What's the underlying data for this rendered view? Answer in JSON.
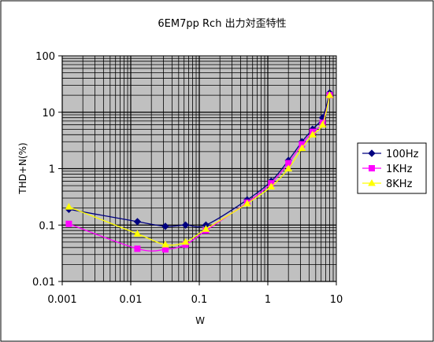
{
  "chart_data": {
    "type": "line",
    "title": "6EM7pp Rch 出力対歪特性",
    "xlabel": "W",
    "ylabel": "THD+N(%)",
    "x_scale": "log",
    "y_scale": "log",
    "xlim": [
      0.001,
      10
    ],
    "ylim": [
      0.01,
      100
    ],
    "x_ticks": [
      "0.001",
      "0.01",
      "0.1",
      "1",
      "10"
    ],
    "y_ticks": [
      "0.01",
      "0.1",
      "1",
      "10",
      "100"
    ],
    "grid": true,
    "plot_background": "#c0c0c0",
    "legend_position": "right",
    "series": [
      {
        "name": "100Hz",
        "color": "#000080",
        "marker": "diamond",
        "x": [
          0.00125,
          0.0125,
          0.032,
          0.063,
          0.125,
          0.5,
          1.12,
          2.0,
          3.15,
          4.5,
          6.3,
          8.0
        ],
        "y": [
          0.19,
          0.115,
          0.095,
          0.1,
          0.1,
          0.28,
          0.6,
          1.4,
          3.0,
          5.0,
          8.0,
          22.0
        ]
      },
      {
        "name": "1KHz",
        "color": "#ff00ff",
        "marker": "square",
        "x": [
          0.00125,
          0.0125,
          0.032,
          0.063,
          0.125,
          0.5,
          1.12,
          2.0,
          3.15,
          4.5,
          6.3,
          8.0
        ],
        "y": [
          0.105,
          0.038,
          0.037,
          0.045,
          0.08,
          0.25,
          0.55,
          1.25,
          2.7,
          4.5,
          6.5,
          20.0
        ]
      },
      {
        "name": "8KHz",
        "color": "#ffff00",
        "marker": "triangle",
        "x": [
          0.00125,
          0.0125,
          0.032,
          0.063,
          0.125,
          0.5,
          1.12,
          2.0,
          3.15,
          4.5,
          6.3,
          8.0
        ],
        "y": [
          0.21,
          0.07,
          0.045,
          0.05,
          0.085,
          0.24,
          0.48,
          1.0,
          2.3,
          4.0,
          6.0,
          20.0
        ]
      }
    ]
  }
}
